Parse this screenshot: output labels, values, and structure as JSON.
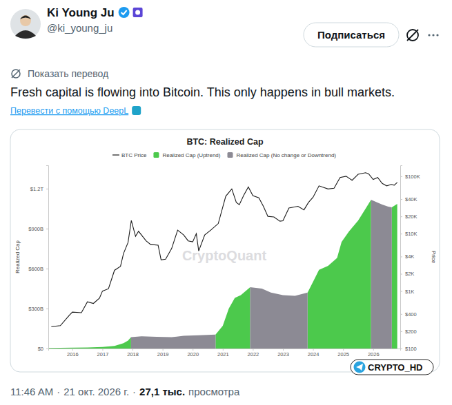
{
  "tweet": {
    "author": "Ki Young Ju",
    "handle": "@ki_young_ju",
    "follow_button": "Подписаться",
    "show_translation": "Показать перевод",
    "text": "Fresh capital is flowing into Bitcoin. This only happens in bull markets.",
    "translate_with": "Перевести с помощью DeepL",
    "time": "11:46 AM",
    "separator": "·",
    "date": "21 окт. 2026 г.",
    "views": "27,1 тыс.",
    "views_label": "просмотра"
  },
  "badge": "CRYPTO_HD",
  "chart_data": {
    "type": "area",
    "title": "BTC: Realized Cap",
    "watermark": "CryptoQuant",
    "ylabel": "Realized Cap",
    "y2label": "Price",
    "xlim": [
      2015.2,
      2026.9
    ],
    "xticks": [
      2016,
      2017,
      2018,
      2019,
      2020,
      2021,
      2022,
      2023,
      2024,
      2025,
      2026
    ],
    "ylim": [
      0,
      1375
    ],
    "yticks": [
      {
        "value": 0,
        "label": "$0"
      },
      {
        "value": 300,
        "label": "$300B"
      },
      {
        "value": 600,
        "label": "$600B"
      },
      {
        "value": 900,
        "label": "$900B"
      },
      {
        "value": 1200,
        "label": "$1.2T"
      }
    ],
    "y2lim": [
      100,
      155000
    ],
    "y2ticks": [
      {
        "value": 100,
        "label": "$100"
      },
      {
        "value": 200,
        "label": "$200"
      },
      {
        "value": 400,
        "label": "$400"
      },
      {
        "value": 1000,
        "label": "$1K"
      },
      {
        "value": 2000,
        "label": "$2K"
      },
      {
        "value": 4000,
        "label": "$4K"
      },
      {
        "value": 10000,
        "label": "$10K"
      },
      {
        "value": 20000,
        "label": "$20K"
      },
      {
        "value": 40000,
        "label": "$40K"
      },
      {
        "value": 100000,
        "label": "$100K"
      }
    ],
    "log": "y2",
    "grid": false,
    "legend": "top",
    "series": [
      {
        "name": "BTC Price",
        "type": "line",
        "color": "#1a1a1a",
        "axis": "y2",
        "x": [
          2015.3,
          2015.6,
          2015.9,
          2016.0,
          2016.3,
          2016.5,
          2016.7,
          2016.9,
          2017.0,
          2017.2,
          2017.4,
          2017.6,
          2017.7,
          2017.85,
          2017.96,
          2018.1,
          2018.2,
          2018.45,
          2018.6,
          2018.85,
          2018.95,
          2019.1,
          2019.3,
          2019.5,
          2019.7,
          2019.85,
          2020.0,
          2020.12,
          2020.2,
          2020.4,
          2020.6,
          2020.85,
          2021.0,
          2021.1,
          2021.3,
          2021.45,
          2021.55,
          2021.7,
          2021.85,
          2022.0,
          2022.2,
          2022.35,
          2022.5,
          2022.7,
          2022.9,
          2023.0,
          2023.2,
          2023.5,
          2023.7,
          2023.85,
          2024.0,
          2024.2,
          2024.5,
          2024.7,
          2024.9,
          2025.1,
          2025.3,
          2025.5,
          2025.75,
          2025.85,
          2026.0,
          2026.15,
          2026.3,
          2026.45,
          2026.6,
          2026.7,
          2026.8
        ],
        "values": [
          240,
          250,
          380,
          430,
          420,
          650,
          610,
          750,
          1000,
          1100,
          2300,
          2700,
          4500,
          7000,
          17000,
          9000,
          11000,
          7500,
          6500,
          6300,
          3500,
          3600,
          5500,
          11500,
          9500,
          7500,
          7200,
          10000,
          5000,
          9500,
          11500,
          15000,
          29000,
          45000,
          60000,
          35000,
          32000,
          47000,
          65000,
          46000,
          42000,
          30000,
          20000,
          19500,
          16500,
          16800,
          28000,
          30000,
          26000,
          35000,
          43000,
          68000,
          60000,
          62000,
          95000,
          100000,
          85000,
          108000,
          115000,
          110000,
          88000,
          95000,
          75000,
          68000,
          72000,
          70000,
          78000
        ]
      },
      {
        "name": "Realized Cap (Uptrend)",
        "type": "area",
        "color": "#4cc94c",
        "x": [
          2015.2,
          2016,
          2016.5,
          2017,
          2017.4,
          2017.7,
          2017.85,
          2017.95,
          2018.3,
          2018.8,
          2019.3,
          2019.7,
          2020.2,
          2020.76,
          2021.0,
          2021.2,
          2021.4,
          2021.6,
          2021.91,
          2022.3,
          2022.6,
          2023.0,
          2023.4,
          2023.82,
          2024.0,
          2024.2,
          2024.5,
          2024.8,
          2024.95,
          2025.2,
          2025.5,
          2025.75,
          2025.93,
          2026.1,
          2026.3,
          2026.5,
          2026.62,
          2026.8
        ],
        "values": [
          4,
          6,
          8,
          12,
          20,
          40,
          60,
          85,
          null,
          null,
          null,
          null,
          null,
          105,
          170,
          300,
          380,
          400,
          460,
          null,
          null,
          null,
          null,
          420,
          500,
          590,
          620,
          680,
          800,
          880,
          960,
          1050,
          1117,
          null,
          null,
          null,
          1060,
          1085
        ]
      },
      {
        "name": "Realized Cap (No change or Downtrend)",
        "type": "area",
        "color": "#8c8a94",
        "x": [
          2015.2,
          2016,
          2016.5,
          2017,
          2017.4,
          2017.7,
          2017.85,
          2017.95,
          2018.3,
          2018.8,
          2019.3,
          2019.7,
          2020.2,
          2020.76,
          2021.0,
          2021.2,
          2021.4,
          2021.6,
          2021.91,
          2022.3,
          2022.6,
          2023.0,
          2023.4,
          2023.82,
          2024.0,
          2024.2,
          2024.5,
          2024.8,
          2024.95,
          2025.2,
          2025.5,
          2025.75,
          2025.93,
          2026.1,
          2026.3,
          2026.5,
          2026.62,
          2026.8
        ],
        "values": [
          null,
          null,
          null,
          null,
          null,
          null,
          null,
          85,
          92,
          88,
          85,
          95,
          100,
          105,
          null,
          null,
          null,
          null,
          460,
          450,
          420,
          400,
          395,
          420,
          null,
          null,
          null,
          null,
          null,
          null,
          null,
          null,
          1117,
          1100,
          1080,
          1065,
          1060,
          null
        ]
      }
    ]
  }
}
